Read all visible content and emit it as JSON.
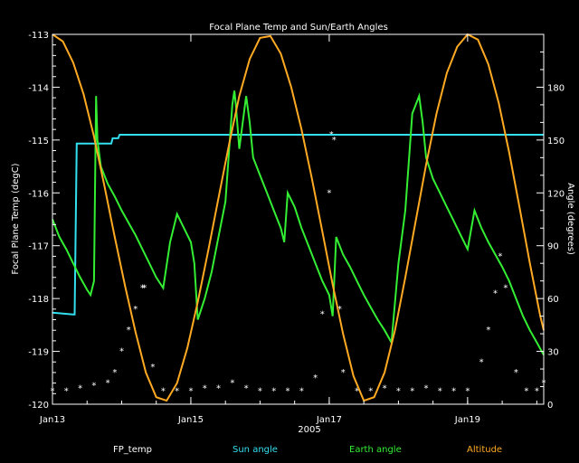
{
  "chart_data": {
    "type": "line",
    "title": "Focal Plane Temp and Sun/Earth Angles",
    "xlabel": "2005",
    "ylabel_left": "Focal Plane Temp (degC)",
    "ylabel_right": "Angle (degrees)",
    "x_ticks": [
      "Jan13",
      "Jan15",
      "Jan17",
      "Jan19"
    ],
    "x_tick_values": [
      13,
      15,
      17,
      19
    ],
    "xlim": [
      13,
      20.1
    ],
    "ylim_left": [
      -120,
      -113
    ],
    "y_ticks_left": [
      "-113",
      "-114",
      "-115",
      "-116",
      "-117",
      "-118",
      "-119",
      "-120"
    ],
    "ylim_right": [
      0,
      210
    ],
    "y_ticks_right": [
      "0",
      "30",
      "60",
      "90",
      "120",
      "150",
      "180"
    ],
    "grid": false,
    "legend_position": "bottom",
    "colors": {
      "background": "#000000",
      "axes": "#ffffff",
      "fp_temp": "#ffffff",
      "sun_angle": "#33e0f0",
      "earth_angle": "#33ee33",
      "altitude": "#ffaa22"
    },
    "series": [
      {
        "name": "FP_temp",
        "axis": "left",
        "style": "points",
        "x": [
          13.0,
          13.2,
          13.4,
          13.6,
          13.8,
          13.9,
          14.0,
          14.1,
          14.2,
          14.3,
          14.33,
          14.45,
          14.6,
          14.8,
          15.0,
          15.2,
          15.4,
          15.6,
          15.8,
          16.0,
          16.2,
          16.4,
          16.6,
          16.8,
          16.9,
          17.0,
          17.03,
          17.07,
          17.15,
          17.2,
          17.4,
          17.6,
          17.8,
          18.0,
          18.2,
          18.4,
          18.6,
          18.8,
          19.0,
          19.2,
          19.3,
          19.4,
          19.47,
          19.55,
          19.7,
          19.85,
          20.0,
          20.1
        ],
        "y": [
          -119.75,
          -119.75,
          -119.7,
          -119.65,
          -119.6,
          -119.4,
          -119.0,
          -118.6,
          -118.2,
          -117.8,
          -117.8,
          -119.3,
          -119.75,
          -119.75,
          -119.75,
          -119.7,
          -119.7,
          -119.6,
          -119.7,
          -119.75,
          -119.75,
          -119.75,
          -119.75,
          -119.5,
          -118.3,
          -116.0,
          -114.9,
          -115.0,
          -118.2,
          -119.4,
          -119.75,
          -119.75,
          -119.7,
          -119.75,
          -119.75,
          -119.7,
          -119.75,
          -119.75,
          -119.75,
          -119.2,
          -118.6,
          -117.9,
          -117.2,
          -117.8,
          -119.4,
          -119.75,
          -119.75,
          -119.6
        ]
      },
      {
        "name": "Sun angle",
        "axis": "right",
        "style": "line",
        "x": [
          13.0,
          13.3,
          13.32,
          13.35,
          13.38,
          13.4,
          13.42,
          13.44,
          13.48,
          13.5,
          13.52,
          13.6,
          13.62,
          13.7,
          13.72,
          13.85,
          13.87,
          13.95,
          13.97,
          14.1,
          14.12,
          14.3,
          14.32,
          14.4,
          14.42,
          14.5,
          14.52,
          14.6,
          14.62,
          14.8,
          14.82,
          15.0,
          15.02,
          15.2,
          15.22,
          15.3,
          15.32,
          15.4,
          15.42,
          15.6,
          15.62,
          15.8,
          15.82,
          16.0,
          16.02,
          16.2,
          16.22,
          16.4,
          16.42,
          16.6,
          16.62,
          16.8,
          16.82,
          16.9,
          16.92,
          17.0,
          17.02,
          17.07,
          17.12,
          17.15,
          17.17,
          17.2,
          17.22,
          17.3,
          17.32,
          17.45,
          17.47,
          17.55,
          17.57,
          17.7,
          17.72,
          17.9,
          17.92,
          18.0,
          18.02,
          18.15,
          18.17,
          18.3,
          18.32,
          18.6,
          18.62,
          18.7,
          18.72,
          18.8,
          18.82,
          18.9,
          18.92,
          19.0,
          19.02,
          19.05,
          19.07,
          19.1,
          19.12,
          19.2,
          19.22,
          19.6,
          19.62,
          20.0,
          20.02,
          20.1
        ],
        "y": [
          52,
          51,
          51,
          148,
          148,
          148,
          148,
          148,
          148,
          148,
          148,
          148,
          148,
          148,
          148,
          148,
          151,
          151,
          153,
          153,
          153,
          153,
          153,
          153,
          153,
          153,
          153,
          153,
          153,
          153,
          153,
          153,
          153,
          153,
          153,
          153,
          153,
          153,
          153,
          153,
          153,
          153,
          153,
          153,
          153,
          153,
          153,
          153,
          153,
          153,
          153,
          153,
          153,
          153,
          153,
          153,
          153,
          153,
          153,
          153,
          153,
          153,
          153,
          153,
          153,
          153,
          153,
          153,
          153,
          153,
          153,
          153,
          153,
          153,
          153,
          153,
          153,
          153,
          153,
          153,
          153,
          153,
          153,
          153,
          153,
          153,
          153,
          153,
          153,
          153,
          153,
          153,
          153,
          153,
          153,
          153,
          153,
          153,
          153,
          153
        ]
      },
      {
        "name": "Earth angle",
        "axis": "right",
        "style": "line",
        "x": [
          13.0,
          13.1,
          13.2,
          13.3,
          13.4,
          13.5,
          13.55,
          13.6,
          13.63,
          13.65,
          13.7,
          13.8,
          13.9,
          14.0,
          14.1,
          14.2,
          14.3,
          14.4,
          14.5,
          14.6,
          14.7,
          14.8,
          14.9,
          15.0,
          15.05,
          15.1,
          15.2,
          15.3,
          15.4,
          15.5,
          15.6,
          15.63,
          15.65,
          15.7,
          15.8,
          15.85,
          15.9,
          16.0,
          16.1,
          16.2,
          16.3,
          16.35,
          16.4,
          16.5,
          16.6,
          16.7,
          16.8,
          16.9,
          17.0,
          17.05,
          17.1,
          17.2,
          17.3,
          17.4,
          17.5,
          17.6,
          17.7,
          17.8,
          17.9,
          18.0,
          18.1,
          18.2,
          18.3,
          18.35,
          18.4,
          18.5,
          18.6,
          18.7,
          18.8,
          18.9,
          19.0,
          19.1,
          19.2,
          19.3,
          19.4,
          19.5,
          19.6,
          19.7,
          19.8,
          19.9,
          20.0,
          20.1
        ],
        "y": [
          105,
          95,
          88,
          80,
          72,
          65,
          62,
          70,
          175,
          150,
          135,
          125,
          118,
          110,
          103,
          96,
          88,
          80,
          72,
          66,
          92,
          108,
          100,
          92,
          80,
          48,
          60,
          75,
          95,
          115,
          170,
          178,
          170,
          145,
          175,
          160,
          140,
          130,
          120,
          110,
          100,
          92,
          120,
          112,
          100,
          90,
          80,
          70,
          62,
          50,
          95,
          85,
          78,
          70,
          62,
          55,
          48,
          42,
          35,
          80,
          110,
          165,
          175,
          160,
          140,
          128,
          120,
          112,
          104,
          96,
          88,
          110,
          100,
          92,
          85,
          78,
          70,
          60,
          50,
          42,
          35,
          28
        ]
      },
      {
        "name": "Altitude",
        "axis": "right",
        "style": "line",
        "x": [
          13.0,
          13.15,
          13.3,
          13.45,
          13.6,
          13.75,
          13.9,
          14.05,
          14.2,
          14.35,
          14.5,
          14.65,
          14.8,
          14.95,
          15.1,
          15.25,
          15.4,
          15.55,
          15.7,
          15.85,
          16.0,
          16.15,
          16.3,
          16.45,
          16.6,
          16.75,
          16.9,
          17.05,
          17.2,
          17.35,
          17.5,
          17.65,
          17.8,
          17.95,
          18.1,
          18.25,
          18.4,
          18.55,
          18.7,
          18.85,
          19.0,
          19.15,
          19.3,
          19.45,
          19.6,
          19.75,
          19.9,
          20.05,
          20.1
        ],
        "y": [
          210,
          206,
          194,
          176,
          152,
          124,
          95,
          67,
          41,
          18,
          4,
          2,
          12,
          32,
          58,
          87,
          117,
          147,
          175,
          196,
          208,
          209,
          199,
          180,
          156,
          128,
          98,
          68,
          40,
          16,
          2,
          4,
          18,
          42,
          72,
          104,
          136,
          165,
          188,
          203,
          210,
          207,
          193,
          171,
          143,
          112,
          80,
          50,
          42
        ]
      }
    ]
  },
  "legend": [
    {
      "label": "FP_temp",
      "color": "#ffffff"
    },
    {
      "label": "Sun angle",
      "color": "#33e0f0"
    },
    {
      "label": "Earth angle",
      "color": "#33ee33"
    },
    {
      "label": "Altitude",
      "color": "#ffaa22"
    }
  ]
}
